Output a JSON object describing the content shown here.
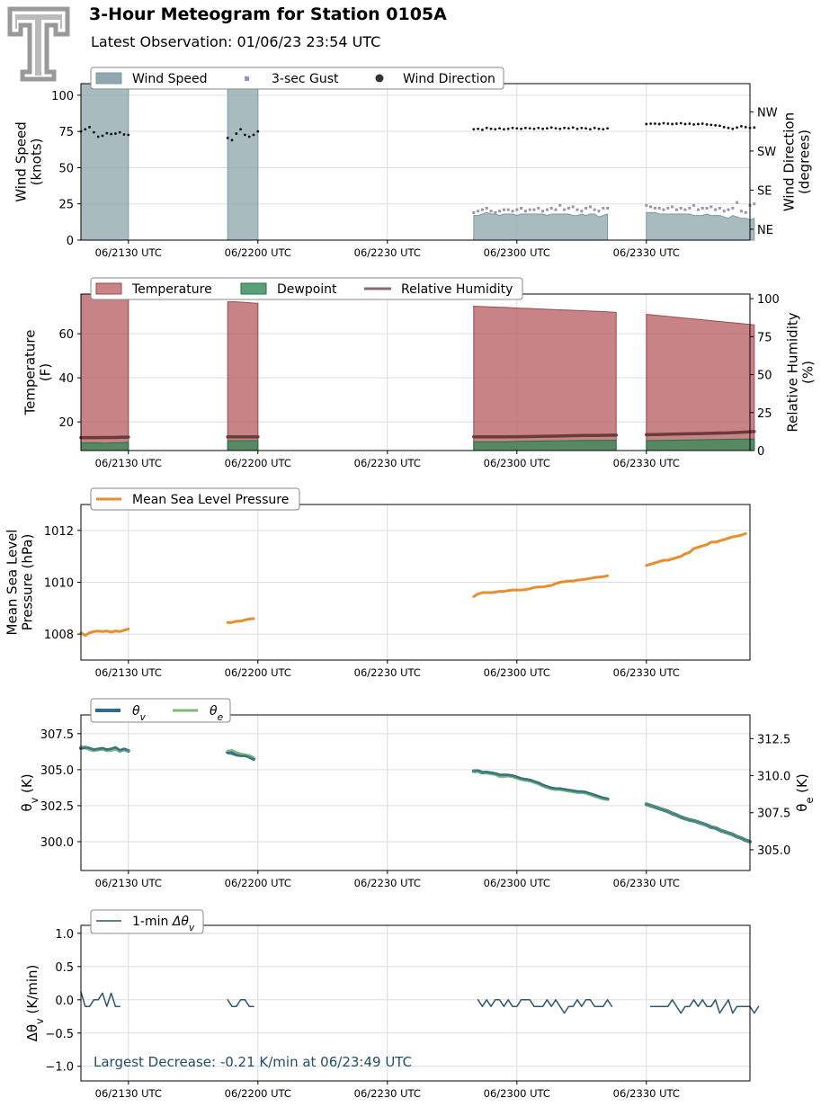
{
  "header": {
    "title": "3-Hour Meteogram for Station 0105A",
    "subtitle": "Latest Observation: 01/06/23 23:54 UTC"
  },
  "x_time_labels": [
    "06/2130 UTC",
    "06/2200 UTC",
    "06/2230 UTC",
    "06/2300 UTC",
    "06/2330 UTC"
  ],
  "colors": {
    "wind_speed": "#8fa9ae",
    "gust": "#9c93b0",
    "wind_dir": "#111111",
    "temperature": "#b65a5e",
    "dewpoint": "#2f8a57",
    "rh": "#6b3a3d",
    "mslp": "#e88e2e",
    "theta_v": "#2f6a8f",
    "theta_e": "#7cb97a",
    "dtheta": "#2d5670",
    "annotation": "#1f4e6b",
    "grid": "#dddddd",
    "logo": "#999999"
  },
  "chart_data": [
    {
      "id": "wind",
      "type": "area",
      "ylabel": "Wind Speed\n(knots)",
      "ylabel_right": "Wind Direction\n(degrees)",
      "ylim": [
        0,
        108
      ],
      "yticks": [
        0,
        25,
        50,
        75,
        100
      ],
      "right_ylim": [
        20,
        380
      ],
      "right_ticks": [
        {
          "value": 45,
          "label": "NE"
        },
        {
          "value": 135,
          "label": "SE"
        },
        {
          "value": 225,
          "label": "SW"
        },
        {
          "value": 315,
          "label": "NW"
        }
      ],
      "legend": [
        "Wind Speed",
        "3-sec Gust",
        "Wind Direction"
      ],
      "segments": [
        {
          "start": 0,
          "speed": [
            108,
            108
          ],
          "gust": null,
          "direction": [
            270,
            275,
            280,
            268,
            258,
            260,
            266,
            264,
            265,
            268,
            263,
            262
          ]
        },
        {
          "start": 34,
          "speed": [
            108,
            108
          ],
          "gust": null,
          "direction": [
            255,
            250,
            265,
            275,
            262,
            258,
            262,
            270
          ]
        },
        {
          "start": 91,
          "speed": [
            17,
            17,
            18,
            19,
            18,
            18,
            17,
            18,
            18,
            18,
            17,
            18,
            18,
            18,
            18,
            18,
            18,
            17,
            18,
            18,
            18,
            18,
            18,
            17,
            17,
            18,
            17,
            18,
            18,
            16,
            17,
            18
          ],
          "gust": [
            19,
            20,
            21,
            22,
            20,
            19,
            20,
            21,
            21,
            20,
            21,
            22,
            20,
            21,
            21,
            22,
            20,
            21,
            22,
            21,
            24,
            21,
            22,
            23,
            21,
            20,
            22,
            23,
            21,
            20,
            22,
            22
          ],
          "direction": [
            275,
            276,
            274,
            278,
            276,
            275,
            277,
            275,
            276,
            278,
            277,
            276,
            278,
            277,
            276,
            278,
            276,
            277,
            279,
            277,
            276,
            278,
            277,
            279,
            276,
            278,
            277,
            275,
            278,
            276,
            275,
            277
          ]
        },
        {
          "start": 131,
          "speed": [
            19,
            19,
            19,
            18,
            18,
            18,
            18,
            18,
            18,
            18,
            18,
            17,
            17,
            17,
            18,
            17,
            17,
            17,
            16,
            15,
            17,
            16,
            15,
            15,
            14,
            15
          ],
          "gust": [
            24,
            23,
            22,
            22,
            21,
            22,
            23,
            21,
            22,
            21,
            22,
            24,
            21,
            22,
            22,
            23,
            21,
            22,
            20,
            21,
            22,
            26,
            20,
            19,
            24,
            25
          ],
          "direction": [
            287,
            288,
            288,
            287,
            289,
            288,
            287,
            288,
            289,
            287,
            288,
            286,
            287,
            288,
            286,
            285,
            284,
            283,
            280,
            278,
            276,
            279,
            282,
            280,
            278,
            279
          ]
        }
      ]
    },
    {
      "id": "thermo",
      "type": "area",
      "ylabel": "Temperature\n(F)",
      "ylabel_right": "Relative Humidity\n(%)",
      "ylim": [
        7,
        78
      ],
      "yticks": [
        20,
        40,
        60
      ],
      "right_ylim": [
        0,
        103
      ],
      "right_ticks": [
        0,
        25,
        50,
        75,
        100
      ],
      "legend": [
        "Temperature",
        "Dewpoint",
        "Relative Humidity"
      ],
      "segments": [
        {
          "start": 0,
          "temperature": [
            78,
            78
          ],
          "dewpoint": [
            10.5,
            10.5,
            10.5,
            10.3,
            10.5,
            10.5,
            10.8
          ],
          "rh": [
            8.5,
            8.5,
            8.5,
            8.6,
            8.6,
            8.7,
            8.8
          ]
        },
        {
          "start": 34,
          "temperature": [
            74.5,
            74.5,
            74.3,
            74,
            73.8
          ],
          "dewpoint": [
            11.5,
            11.5,
            11.5,
            11.5,
            11.5
          ],
          "rh": [
            9,
            9,
            9,
            9,
            9
          ]
        },
        {
          "start": 91,
          "temperature": [
            72.5,
            72.2,
            71.9,
            71.6,
            71.3,
            71.0,
            70.7,
            70.4,
            70.1,
            69.7
          ],
          "dewpoint": [
            11,
            11,
            11,
            11.2,
            11.3,
            11.4,
            11.5,
            11.6,
            11.6,
            11.7
          ],
          "rh": [
            9,
            9,
            9,
            9.1,
            9.3,
            9.5,
            9.7,
            9.9,
            10.0,
            10.1
          ]
        },
        {
          "start": 131,
          "temperature": [
            68.8,
            68.2,
            67.6,
            67.0,
            66.4,
            65.8,
            65.2,
            64.6,
            64.0
          ],
          "dewpoint": [
            11.5,
            11.6,
            11.7,
            11.8,
            11.9,
            12.0,
            12.1,
            12.2,
            12.2
          ],
          "rh": [
            10.4,
            10.6,
            10.8,
            11.0,
            11.2,
            11.4,
            11.6,
            12.0,
            12.5
          ]
        }
      ]
    },
    {
      "id": "mslp",
      "type": "line",
      "ylabel": "Mean Sea Level\nPressure (hPa)",
      "ylim": [
        1007.0,
        1013.0
      ],
      "yticks": [
        1008,
        1010,
        1012
      ],
      "legend": [
        "Mean Sea Level Pressure"
      ],
      "segments": [
        {
          "start": 0,
          "values": [
            1008.05,
            1007.95,
            1008.05,
            1008.1,
            1008.12,
            1008.1,
            1008.12,
            1008.08,
            1008.12,
            1008.1,
            1008.15,
            1008.2
          ]
        },
        {
          "start": 34,
          "values": [
            1008.45,
            1008.45,
            1008.5,
            1008.5,
            1008.55,
            1008.58,
            1008.6
          ]
        },
        {
          "start": 91,
          "values": [
            1009.45,
            1009.55,
            1009.6,
            1009.6,
            1009.6,
            1009.62,
            1009.65,
            1009.65,
            1009.68,
            1009.7,
            1009.7,
            1009.7,
            1009.72,
            1009.75,
            1009.8,
            1009.82,
            1009.82,
            1009.85,
            1009.88,
            1009.95,
            1010.0,
            1010.02,
            1010.05,
            1010.05,
            1010.08,
            1010.1,
            1010.12,
            1010.15,
            1010.18,
            1010.2,
            1010.22,
            1010.25
          ]
        },
        {
          "start": 131,
          "values": [
            1010.65,
            1010.7,
            1010.75,
            1010.8,
            1010.85,
            1010.85,
            1010.9,
            1010.95,
            1011.0,
            1011.1,
            1011.15,
            1011.3,
            1011.35,
            1011.4,
            1011.45,
            1011.55,
            1011.55,
            1011.6,
            1011.65,
            1011.7,
            1011.75,
            1011.78,
            1011.82,
            1011.88
          ]
        }
      ]
    },
    {
      "id": "theta",
      "type": "line",
      "ylabel": "θ_v (K)",
      "ylabel_right": "θ_e (K)",
      "ylim": [
        298.0,
        308.8
      ],
      "yticks": [
        300.0,
        302.5,
        305.0,
        307.5
      ],
      "right_ylim": [
        303.6,
        314.1
      ],
      "right_ticks": [
        305.0,
        307.5,
        310.0,
        312.5
      ],
      "legend": [
        "θv",
        "θe"
      ],
      "segments": [
        {
          "start": 0,
          "theta_v": [
            306.5,
            306.55,
            306.45,
            306.35,
            306.4,
            306.45,
            306.35,
            306.4,
            306.5,
            306.3,
            306.4,
            306.3
          ],
          "theta_e_on_v_axis": [
            306.6,
            306.6,
            306.35,
            306.3,
            306.35,
            306.4,
            306.3,
            306.3,
            306.4,
            306.25,
            306.35,
            306.3
          ]
        },
        {
          "start": 34,
          "theta_v": [
            306.2,
            306.15,
            306.05,
            306.0,
            306.0,
            305.9,
            305.75
          ],
          "theta_e_on_v_axis": [
            306.3,
            306.35,
            306.2,
            306.1,
            306.05,
            306.0,
            305.85
          ]
        },
        {
          "start": 91,
          "theta_v": [
            304.9,
            304.9,
            304.8,
            304.8,
            304.75,
            304.7,
            304.6,
            304.6,
            304.6,
            304.55,
            304.45,
            304.35,
            304.3,
            304.25,
            304.15,
            304.05,
            303.9,
            303.8,
            303.7,
            303.65,
            303.65,
            303.6,
            303.55,
            303.5,
            303.45,
            303.45,
            303.4,
            303.3,
            303.2,
            303.1,
            303.0,
            302.95
          ],
          "theta_e_on_v_axis": [
            304.9,
            304.85,
            304.8,
            304.75,
            304.7,
            304.65,
            304.5,
            304.5,
            304.55,
            304.5,
            304.4,
            304.3,
            304.25,
            304.2,
            304.1,
            304.0,
            303.85,
            303.75,
            303.65,
            303.6,
            303.6,
            303.55,
            303.5,
            303.45,
            303.4,
            303.4,
            303.35,
            303.25,
            303.15,
            303.05,
            302.95,
            302.9
          ]
        },
        {
          "start": 131,
          "theta_v": [
            302.6,
            302.5,
            302.4,
            302.3,
            302.2,
            302.1,
            301.95,
            301.85,
            301.7,
            301.6,
            301.5,
            301.45,
            301.35,
            301.25,
            301.15,
            301.0,
            300.95,
            300.8,
            300.7,
            300.6,
            300.5,
            300.35,
            300.25,
            300.1,
            300.0
          ],
          "theta_e_on_v_axis": [
            302.6,
            302.5,
            302.4,
            302.3,
            302.2,
            302.1,
            301.95,
            301.85,
            301.7,
            301.6,
            301.5,
            301.45,
            301.35,
            301.25,
            301.15,
            301.0,
            300.95,
            300.8,
            300.7,
            300.6,
            300.5,
            300.35,
            300.25,
            300.1,
            300.0
          ]
        }
      ]
    },
    {
      "id": "dtheta",
      "type": "line",
      "ylabel": "Δθ_v (K/min)",
      "ylim": [
        -1.22,
        1.12
      ],
      "yticks": [
        -1.0,
        -0.5,
        0.0,
        0.5,
        1.0
      ],
      "legend": [
        "1-min Δθv"
      ],
      "annotation": "Largest Decrease: -0.21 K/min at 06/23:49 UTC",
      "segments": [
        {
          "start": 0,
          "values": [
            0.12,
            -0.1,
            -0.1,
            0.0,
            0.0,
            0.1,
            -0.1,
            0.1,
            -0.1,
            -0.1
          ]
        },
        {
          "start": 34,
          "values": [
            0.0,
            -0.1,
            -0.1,
            0.0,
            0.0,
            -0.1,
            -0.1
          ]
        },
        {
          "start": 92,
          "values": [
            0.0,
            -0.1,
            0.0,
            -0.1,
            0.0,
            0.0,
            -0.1,
            0.0,
            -0.1,
            -0.1,
            0.0,
            0.0,
            0.0,
            -0.1,
            -0.1,
            -0.1,
            0.0,
            -0.1,
            0.0,
            -0.1,
            -0.2,
            -0.1,
            -0.1,
            0.0,
            -0.1,
            0.0,
            0.0,
            -0.1,
            -0.1,
            -0.1,
            0.0,
            -0.1
          ]
        },
        {
          "start": 132,
          "values": [
            -0.1,
            -0.1,
            -0.1,
            -0.1,
            -0.1,
            0.0,
            -0.1,
            -0.2,
            -0.1,
            -0.1,
            0.0,
            -0.1,
            0.0,
            -0.1,
            -0.1,
            0.0,
            -0.2,
            -0.1,
            0.0,
            -0.2,
            -0.1,
            -0.1,
            -0.1,
            -0.1,
            -0.2,
            -0.1
          ]
        }
      ]
    }
  ]
}
